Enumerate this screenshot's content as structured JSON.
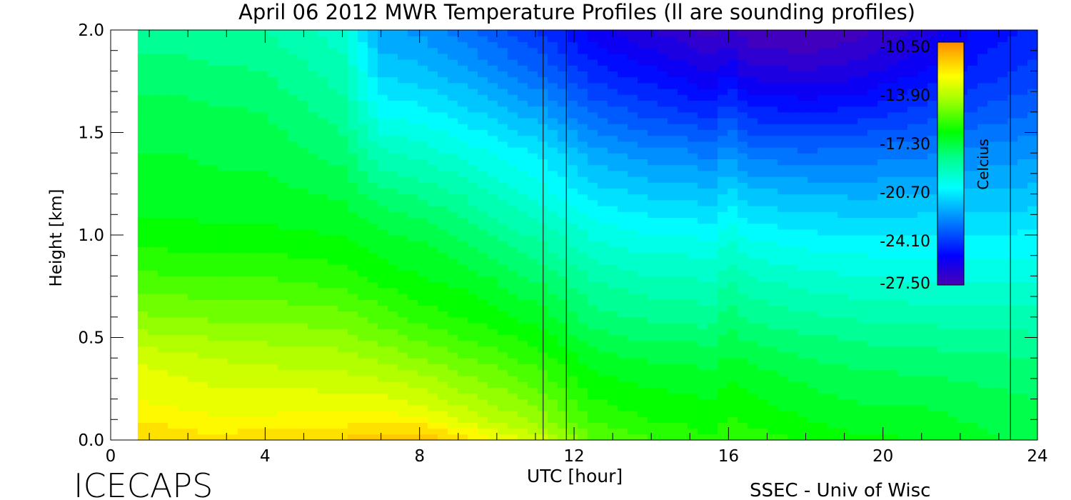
{
  "chart_data": {
    "type": "heatmap",
    "title": "April 06 2012 MWR Temperature Profiles (ll are sounding profiles)",
    "xlabel": "UTC [hour]",
    "ylabel": "Height [km]",
    "xlim": [
      0,
      24
    ],
    "ylim": [
      0,
      2.0
    ],
    "x_ticks": [
      "0",
      "4",
      "8",
      "12",
      "16",
      "20",
      "24"
    ],
    "y_ticks": [
      "0.0",
      "0.5",
      "1.0",
      "1.5",
      "2.0"
    ],
    "data_x_range": [
      0.7,
      24
    ],
    "sounding_times": [
      11.2,
      11.8,
      23.3
    ],
    "grid": false,
    "colorbar": {
      "label": "Celcius",
      "ticks": [
        "-10.50",
        "-13.90",
        "-17.30",
        "-20.70",
        "-24.10",
        "-27.50"
      ],
      "range": [
        -27.5,
        -10.5
      ]
    },
    "heights_km": [
      0.0,
      0.05,
      0.1,
      0.2,
      0.3,
      0.4,
      0.5,
      0.6,
      0.8,
      1.0,
      1.2,
      1.4,
      1.6,
      1.8,
      2.0
    ],
    "profiles": [
      {
        "hour": 0.7,
        "temps": [
          -12.0,
          -12.3,
          -12.6,
          -13.0,
          -13.3,
          -13.6,
          -14.3,
          -14.9,
          -15.9,
          -16.8,
          -17.3,
          -17.5,
          -17.8,
          -18.3,
          -18.8
        ]
      },
      {
        "hour": 2.0,
        "temps": [
          -12.1,
          -12.4,
          -12.8,
          -13.2,
          -13.5,
          -13.9,
          -14.4,
          -15.0,
          -16.0,
          -16.8,
          -17.3,
          -17.5,
          -17.8,
          -18.3,
          -18.8
        ]
      },
      {
        "hour": 2.5,
        "temps": [
          -12.3,
          -12.6,
          -12.9,
          -13.3,
          -13.6,
          -14.0,
          -14.5,
          -15.1,
          -16.0,
          -16.9,
          -17.3,
          -17.6,
          -17.9,
          -18.4,
          -18.9
        ]
      },
      {
        "hour": 4.0,
        "temps": [
          -12.2,
          -12.5,
          -12.9,
          -13.3,
          -13.7,
          -14.2,
          -14.6,
          -15.1,
          -16.0,
          -16.9,
          -17.3,
          -17.7,
          -18.0,
          -18.5,
          -19.0
        ]
      },
      {
        "hour": 6.0,
        "temps": [
          -11.9,
          -12.3,
          -12.8,
          -13.3,
          -13.8,
          -14.3,
          -14.8,
          -15.3,
          -16.3,
          -17.0,
          -17.6,
          -18.2,
          -18.8,
          -19.3,
          -19.8
        ]
      },
      {
        "hour": 7.0,
        "temps": [
          -11.7,
          -12.1,
          -12.7,
          -13.4,
          -14.0,
          -14.6,
          -15.2,
          -15.7,
          -16.7,
          -17.4,
          -18.3,
          -19.4,
          -20.6,
          -21.6,
          -22.4
        ]
      },
      {
        "hour": 8.0,
        "temps": [
          -11.6,
          -12.1,
          -12.9,
          -13.7,
          -14.3,
          -15.0,
          -15.6,
          -16.2,
          -17.0,
          -17.6,
          -18.6,
          -19.7,
          -20.8,
          -21.9,
          -22.6
        ]
      },
      {
        "hour": 9.0,
        "temps": [
          -12.2,
          -12.8,
          -13.5,
          -14.2,
          -14.8,
          -15.4,
          -16.0,
          -16.5,
          -17.2,
          -18.0,
          -19.0,
          -20.1,
          -21.2,
          -22.3,
          -23.2
        ]
      },
      {
        "hour": 10.0,
        "temps": [
          -13.0,
          -13.5,
          -14.1,
          -14.7,
          -15.2,
          -15.8,
          -16.3,
          -16.8,
          -17.6,
          -18.6,
          -19.6,
          -20.6,
          -21.8,
          -23.0,
          -23.8
        ]
      },
      {
        "hour": 11.2,
        "temps": [
          -13.8,
          -14.3,
          -14.8,
          -15.3,
          -15.8,
          -16.3,
          -16.8,
          -17.3,
          -18.2,
          -19.2,
          -20.3,
          -21.1,
          -22.4,
          -23.6,
          -24.6
        ]
      },
      {
        "hour": 12.5,
        "temps": [
          -15.5,
          -15.8,
          -16.1,
          -16.5,
          -16.9,
          -17.3,
          -17.8,
          -18.3,
          -19.1,
          -20.1,
          -21.2,
          -22.3,
          -23.6,
          -24.8,
          -25.8
        ]
      },
      {
        "hour": 14.0,
        "temps": [
          -16.0,
          -16.2,
          -16.5,
          -16.8,
          -17.2,
          -17.6,
          -18.1,
          -18.6,
          -19.5,
          -20.5,
          -21.6,
          -22.8,
          -24.2,
          -25.4,
          -26.5
        ]
      },
      {
        "hour": 15.0,
        "temps": [
          -16.2,
          -16.4,
          -16.6,
          -16.9,
          -17.2,
          -17.6,
          -18.1,
          -18.6,
          -19.5,
          -20.5,
          -21.6,
          -22.9,
          -24.5,
          -25.8,
          -26.9
        ]
      },
      {
        "hour": 15.5,
        "temps": [
          -16.4,
          -16.6,
          -16.8,
          -17.1,
          -17.4,
          -17.8,
          -18.3,
          -18.8,
          -19.7,
          -20.7,
          -21.9,
          -23.2,
          -24.8,
          -26.2,
          -27.3
        ]
      },
      {
        "hour": 16.0,
        "temps": [
          -16.0,
          -16.2,
          -16.4,
          -16.7,
          -17.0,
          -17.4,
          -17.8,
          -18.2,
          -19.1,
          -20.1,
          -21.2,
          -22.6,
          -24.1,
          -25.6,
          -26.8
        ]
      },
      {
        "hour": 16.5,
        "temps": [
          -16.2,
          -16.4,
          -16.6,
          -16.9,
          -17.2,
          -17.6,
          -18.1,
          -18.6,
          -19.5,
          -20.6,
          -21.8,
          -23.2,
          -24.8,
          -26.3,
          -27.4
        ]
      },
      {
        "hour": 18.0,
        "temps": [
          -16.6,
          -16.8,
          -17.0,
          -17.3,
          -17.6,
          -18.0,
          -18.4,
          -18.9,
          -19.8,
          -20.9,
          -22.0,
          -23.4,
          -25.0,
          -26.5,
          -27.6
        ]
      },
      {
        "hour": 19.5,
        "temps": [
          -16.9,
          -17.1,
          -17.3,
          -17.6,
          -17.9,
          -18.2,
          -18.6,
          -19.1,
          -20.0,
          -21.0,
          -22.1,
          -23.3,
          -24.8,
          -26.2,
          -27.2
        ]
      },
      {
        "hour": 21.0,
        "temps": [
          -17.0,
          -17.1,
          -17.3,
          -17.6,
          -17.9,
          -18.3,
          -18.7,
          -19.2,
          -20.1,
          -21.0,
          -22.0,
          -23.1,
          -24.3,
          -25.5,
          -26.3
        ]
      },
      {
        "hour": 22.5,
        "temps": [
          -17.4,
          -17.5,
          -17.6,
          -17.8,
          -18.1,
          -18.4,
          -18.8,
          -19.2,
          -20.1,
          -21.0,
          -21.9,
          -22.8,
          -23.9,
          -24.8,
          -25.4
        ]
      },
      {
        "hour": 24.0,
        "temps": [
          -17.6,
          -17.7,
          -17.8,
          -18.0,
          -18.2,
          -18.5,
          -18.9,
          -19.3,
          -20.1,
          -20.9,
          -21.8,
          -22.6,
          -23.5,
          -24.3,
          -24.9
        ]
      }
    ]
  },
  "footer": {
    "project": "ICECAPS",
    "credit": "SSEC - Univ of Wisc"
  }
}
